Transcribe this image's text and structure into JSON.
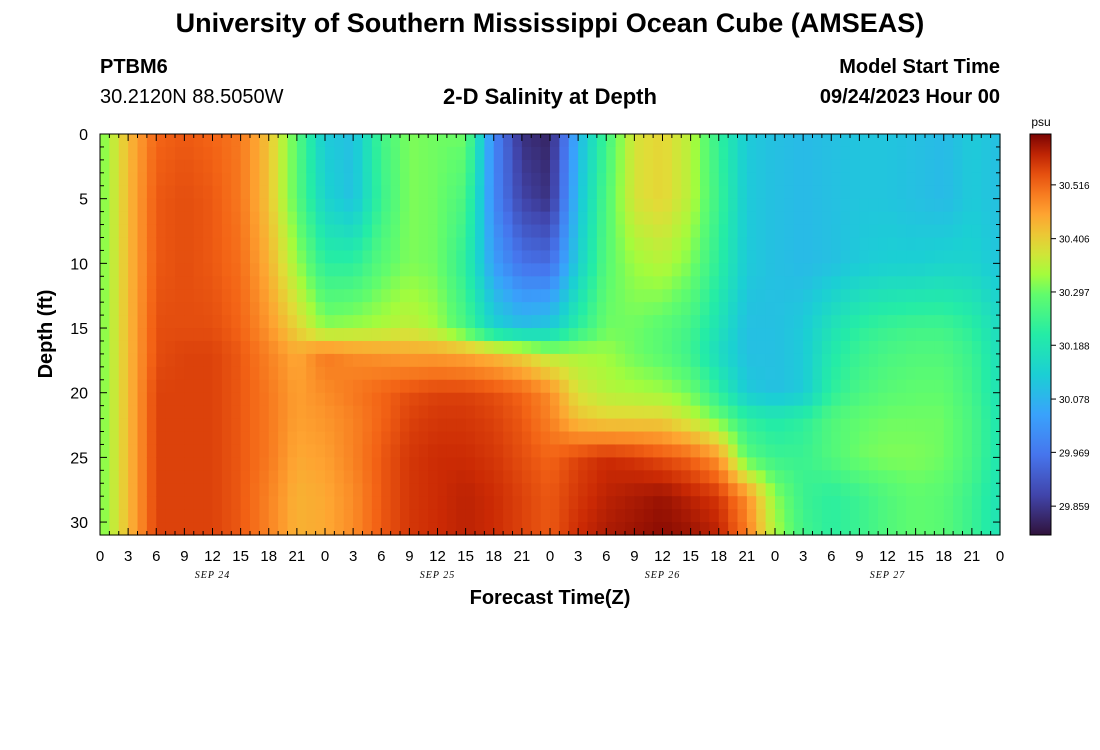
{
  "header": {
    "title": "University of Southern Mississippi Ocean Cube (AMSEAS)",
    "station": "PTBM6",
    "coordinates": "30.2120N  88.5050W",
    "subtitle": "2-D Salinity at Depth",
    "start_label": "Model Start Time",
    "start_value": "09/24/2023 Hour 00"
  },
  "footer": {
    "title": "University of Southern Mississippi Ocean Cube (AMSEAS)"
  },
  "chart_data": {
    "type": "heatmap",
    "title": "2-D Salinity at Depth",
    "xlabel": "Forecast Time(Z)",
    "ylabel": "Depth (ft)",
    "x_ticks": [
      "0",
      "3",
      "6",
      "9",
      "12",
      "15",
      "18",
      "21",
      "0",
      "3",
      "6",
      "9",
      "12",
      "15",
      "18",
      "21",
      "0",
      "3",
      "6",
      "9",
      "12",
      "15",
      "18",
      "21",
      "0",
      "3",
      "6",
      "9",
      "12",
      "15",
      "18",
      "21",
      "0"
    ],
    "x_hours_range": [
      0,
      96
    ],
    "day_labels": [
      {
        "label": "SEP 24",
        "hour": 12
      },
      {
        "label": "SEP 25",
        "hour": 36
      },
      {
        "label": "SEP 26",
        "hour": 60
      },
      {
        "label": "SEP 27",
        "hour": 84
      }
    ],
    "y_ticks": [
      0,
      5,
      10,
      15,
      20,
      25,
      30
    ],
    "ylim": [
      0,
      31
    ],
    "y_inverted": true,
    "colorbar": {
      "unit": "psu",
      "ticks": [
        30.516,
        30.406,
        30.297,
        30.188,
        30.078,
        29.969,
        29.859
      ],
      "range": [
        29.8,
        30.62
      ]
    },
    "depth_rows": [
      0,
      5,
      10,
      15,
      17,
      20,
      22,
      25,
      28,
      31
    ],
    "hours": [
      0,
      3,
      6,
      9,
      12,
      15,
      18,
      21,
      24,
      27,
      30,
      33,
      36,
      39,
      42,
      45,
      48,
      51,
      54,
      57,
      60,
      63,
      66,
      69,
      72,
      75,
      78,
      81,
      84,
      87,
      90,
      93,
      96
    ],
    "values": [
      [
        30.3,
        30.43,
        30.52,
        30.53,
        30.52,
        30.5,
        30.42,
        30.28,
        30.12,
        30.1,
        30.25,
        30.31,
        30.3,
        30.3,
        30.0,
        29.85,
        29.83,
        30.08,
        30.25,
        30.38,
        30.4,
        30.35,
        30.23,
        30.12,
        30.1,
        30.09,
        30.1,
        30.11,
        30.11,
        30.1,
        30.09,
        30.12,
        30.1
      ],
      [
        30.3,
        30.43,
        30.53,
        30.54,
        30.53,
        30.5,
        30.42,
        30.28,
        30.14,
        30.1,
        30.24,
        30.31,
        30.3,
        30.26,
        30.0,
        29.88,
        29.85,
        30.1,
        30.27,
        30.38,
        30.4,
        30.35,
        30.24,
        30.12,
        30.1,
        30.09,
        30.1,
        30.11,
        30.11,
        30.1,
        30.09,
        30.12,
        30.1
      ],
      [
        30.3,
        30.43,
        30.53,
        30.54,
        30.53,
        30.51,
        30.44,
        30.33,
        30.22,
        30.22,
        30.28,
        30.31,
        30.3,
        30.22,
        30.04,
        29.96,
        29.95,
        30.13,
        30.28,
        30.33,
        30.35,
        30.31,
        30.22,
        30.12,
        30.1,
        30.09,
        30.1,
        30.12,
        30.13,
        30.13,
        30.14,
        30.14,
        30.11
      ],
      [
        30.3,
        30.43,
        30.54,
        30.54,
        30.54,
        30.52,
        30.47,
        30.4,
        30.32,
        30.33,
        30.34,
        30.36,
        30.33,
        30.26,
        30.14,
        30.1,
        30.12,
        30.22,
        30.3,
        30.3,
        30.28,
        30.25,
        30.18,
        30.1,
        30.1,
        30.12,
        30.18,
        30.22,
        30.24,
        30.25,
        30.25,
        30.22,
        30.16
      ],
      [
        30.3,
        30.43,
        30.54,
        30.55,
        30.55,
        30.53,
        30.49,
        30.45,
        30.5,
        30.48,
        30.47,
        30.46,
        30.46,
        30.45,
        30.43,
        30.4,
        30.35,
        30.34,
        30.33,
        30.3,
        30.28,
        30.24,
        30.16,
        30.1,
        30.1,
        30.12,
        30.2,
        30.24,
        30.26,
        30.27,
        30.27,
        30.24,
        30.17
      ],
      [
        30.3,
        30.43,
        30.55,
        30.55,
        30.55,
        30.53,
        30.5,
        30.46,
        30.48,
        30.5,
        30.52,
        30.54,
        30.55,
        30.55,
        30.54,
        30.52,
        30.48,
        30.38,
        30.35,
        30.34,
        30.33,
        30.3,
        30.22,
        30.12,
        30.1,
        30.12,
        30.22,
        30.26,
        30.28,
        30.29,
        30.29,
        30.25,
        30.18
      ],
      [
        30.3,
        30.43,
        30.55,
        30.55,
        30.55,
        30.53,
        30.5,
        30.46,
        30.47,
        30.49,
        30.52,
        30.55,
        30.56,
        30.56,
        30.55,
        30.53,
        30.49,
        30.42,
        30.4,
        30.4,
        30.4,
        30.36,
        30.3,
        30.22,
        30.2,
        30.22,
        30.27,
        30.29,
        30.3,
        30.3,
        30.3,
        30.26,
        30.19
      ],
      [
        30.3,
        30.43,
        30.55,
        30.55,
        30.55,
        30.53,
        30.5,
        30.45,
        30.46,
        30.49,
        30.53,
        30.56,
        30.57,
        30.57,
        30.56,
        30.54,
        30.52,
        30.55,
        30.57,
        30.56,
        30.54,
        30.52,
        30.47,
        30.28,
        30.24,
        30.24,
        30.27,
        30.3,
        30.31,
        30.31,
        30.3,
        30.26,
        30.19
      ],
      [
        30.3,
        30.43,
        30.55,
        30.55,
        30.55,
        30.53,
        30.49,
        30.44,
        30.45,
        30.48,
        30.53,
        30.56,
        30.57,
        30.58,
        30.57,
        30.55,
        30.53,
        30.56,
        30.58,
        30.59,
        30.6,
        30.58,
        30.56,
        30.48,
        30.32,
        30.24,
        30.22,
        30.24,
        30.27,
        30.29,
        30.28,
        30.24,
        30.18
      ],
      [
        30.3,
        30.43,
        30.55,
        30.55,
        30.55,
        30.53,
        30.49,
        30.44,
        30.45,
        30.48,
        30.53,
        30.56,
        30.57,
        30.58,
        30.57,
        30.55,
        30.53,
        30.57,
        30.59,
        30.6,
        30.61,
        30.6,
        30.58,
        30.5,
        30.34,
        30.25,
        30.22,
        30.24,
        30.27,
        30.29,
        30.28,
        30.24,
        30.18
      ]
    ]
  }
}
